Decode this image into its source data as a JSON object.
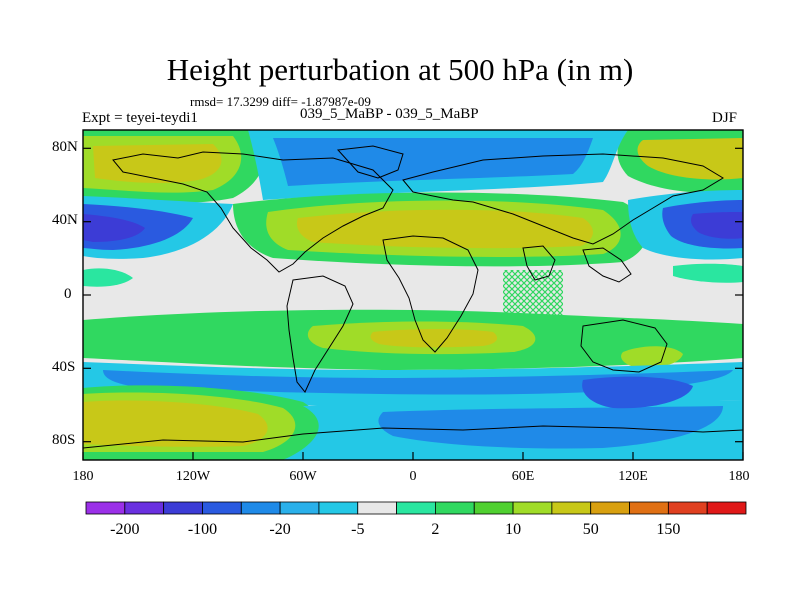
{
  "title": "Height perturbation at 500 hPa (in m)",
  "stats": "rmsd= 17.3299 diff= -1.87987e-09",
  "experiment": "Expt = teyei-teydi1",
  "center_label": "039_5_MaBP - 039_5_MaBP",
  "season": "DJF",
  "map": {
    "projection": "cylindrical-equidistant",
    "lon_range": [
      -180,
      180
    ],
    "lat_range": [
      -90,
      90
    ],
    "lat_ticks": [
      "80N",
      "40N",
      "0",
      "40S",
      "80S"
    ],
    "lon_ticks": [
      "180",
      "120W",
      "60W",
      "0",
      "60E",
      "120E",
      "180"
    ]
  },
  "colorbar": {
    "colors": [
      "#9b30e8",
      "#6a30e0",
      "#3c3cd6",
      "#2a5ae0",
      "#1f8ae8",
      "#2ab0ea",
      "#24c8e6",
      "#e8e8e8",
      "#2ae6a0",
      "#30d860",
      "#50d030",
      "#a0dc28",
      "#c8c818",
      "#d8a010",
      "#e07014",
      "#e04020",
      "#e01818"
    ],
    "labels": [
      "-200",
      "-100",
      "-20",
      "-5",
      "2",
      "10",
      "50",
      "150"
    ]
  }
}
